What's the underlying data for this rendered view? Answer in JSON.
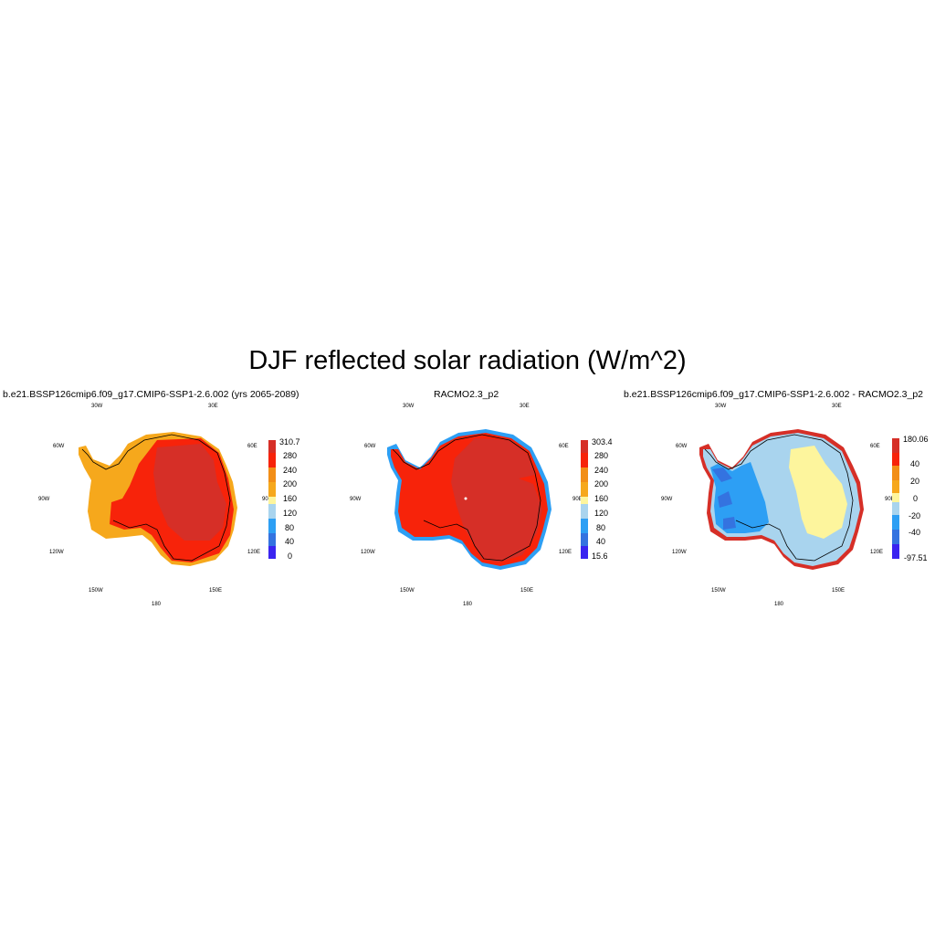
{
  "title": "DJF reflected solar radiation (W/m^2)",
  "panels": [
    {
      "title": "b.e21.BSSP126cmip6.f09_g17.CMIP6-SSP1-2.6.002 (yrs 2065-2089)",
      "colorbar": {
        "labels": [
          "310.7",
          "280",
          "240",
          "200",
          "160",
          "120",
          "80",
          "40",
          "0"
        ],
        "colors": [
          "#d62f27",
          "#f7230a",
          "#f28e17",
          "#f6a81c",
          "#fdf59d",
          "#a9d4ee",
          "#2d9ff4",
          "#3473e0",
          "#3a24f0"
        ]
      }
    },
    {
      "title": "RACMO2.3_p2",
      "colorbar": {
        "labels": [
          "303.4",
          "280",
          "240",
          "200",
          "160",
          "120",
          "80",
          "40",
          "15.6"
        ],
        "colors": [
          "#d62f27",
          "#f7230a",
          "#f28e17",
          "#f6a81c",
          "#fdf59d",
          "#a9d4ee",
          "#2d9ff4",
          "#3473e0",
          "#3a24f0"
        ]
      }
    },
    {
      "title": "b.e21.BSSP126cmip6.f09_g17.CMIP6-SSP1-2.6.002 - RACMO2.3_p2",
      "colorbar": {
        "labels": [
          "180.06",
          "40",
          "20",
          "0",
          "-20",
          "-40",
          "-97.51"
        ],
        "colors": [
          "#d62f27",
          "#f7230a",
          "#f28e17",
          "#f6a81c",
          "#fdf59d",
          "#a9d4ee",
          "#2d9ff4",
          "#3473e0",
          "#3a24f0"
        ]
      }
    }
  ],
  "map_labels": {
    "lon_30w": "30W",
    "lon_30e": "30E",
    "lon_60w": "60W",
    "lon_60e": "60E",
    "lon_90w": "90W",
    "lon_90e": "90E",
    "lon_120w": "120W",
    "lon_120e": "120E",
    "lon_150w": "150W",
    "lon_150e": "150E",
    "lon_180": "180"
  }
}
